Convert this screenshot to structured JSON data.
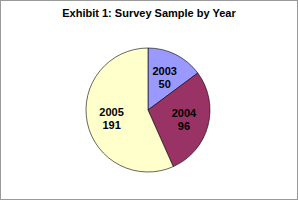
{
  "chart_data": {
    "type": "pie",
    "title": "Exhibit 1:  Survey Sample by Year",
    "categories": [
      "2003",
      "2004",
      "2005"
    ],
    "values": [
      50,
      96,
      191
    ],
    "colors": [
      "#9999ff",
      "#993366",
      "#ffffcc"
    ],
    "data_labels": true
  }
}
